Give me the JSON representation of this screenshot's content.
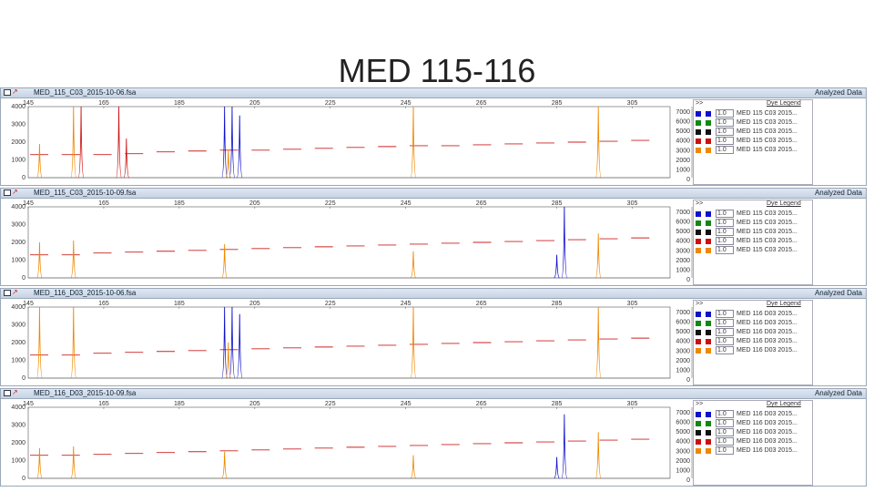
{
  "slide": {
    "title": "MED 115-116"
  },
  "legend_title": "Dye Legend",
  "legend_expand": ">>",
  "analyzed_label": "Analyzed Data",
  "colors": {
    "blue": "#1010cc",
    "green": "#118811",
    "black": "#111111",
    "red": "#cc1010",
    "orange": "#ee8800",
    "sizing": "#cc2222"
  },
  "x_ticks": [
    "145",
    "165",
    "185",
    "205",
    "225",
    "245",
    "265",
    "285",
    "305"
  ],
  "right_ticks": [
    "7000",
    "6000",
    "5000",
    "4000",
    "3000",
    "2000",
    "1000",
    "0"
  ],
  "panels": [
    {
      "file": "MED_115_C03_2015-10-06.fsa",
      "left_ticks": [
        "4000",
        "3000",
        "2000",
        "1000",
        "0"
      ],
      "legend": [
        {
          "value": "1.0",
          "name": "MED 115 C03 2015..."
        },
        {
          "value": "1.0",
          "name": "MED 115 C03 2015..."
        },
        {
          "value": "1.0",
          "name": "MED 115 C03 2015..."
        },
        {
          "value": "1.0",
          "name": "MED 115 C03 2015..."
        },
        {
          "value": "1.0",
          "name": "MED 115 C03 2015..."
        }
      ]
    },
    {
      "file": "MED_115_C03_2015-10-09.fsa",
      "left_ticks": [
        "4000",
        "3000",
        "2000",
        "1000",
        "0"
      ],
      "legend": [
        {
          "value": "1.0",
          "name": "MED 115 C03 2015..."
        },
        {
          "value": "1.0",
          "name": "MED 115 C03 2015..."
        },
        {
          "value": "1.0",
          "name": "MED 115 C03 2015..."
        },
        {
          "value": "1.0",
          "name": "MED 115 C03 2015..."
        },
        {
          "value": "1.0",
          "name": "MED 115 C03 2015..."
        }
      ]
    },
    {
      "file": "MED_116_D03_2015-10-06.fsa",
      "left_ticks": [
        "4000",
        "3000",
        "2000",
        "1000",
        "0"
      ],
      "legend": [
        {
          "value": "1.0",
          "name": "MED 116 D03 2015..."
        },
        {
          "value": "1.0",
          "name": "MED 116 D03 2015..."
        },
        {
          "value": "1.0",
          "name": "MED 116 D03 2015..."
        },
        {
          "value": "1.0",
          "name": "MED 116 D03 2015..."
        },
        {
          "value": "1.0",
          "name": "MED 116 D03 2015..."
        }
      ]
    },
    {
      "file": "MED_116_D03_2015-10-09.fsa",
      "left_ticks": [
        "4000",
        "3000",
        "2000",
        "1000",
        "0"
      ],
      "legend": [
        {
          "value": "1.0",
          "name": "MED 116 D03 2015..."
        },
        {
          "value": "1.0",
          "name": "MED 116 D03 2015..."
        },
        {
          "value": "1.0",
          "name": "MED 116 D03 2015..."
        },
        {
          "value": "1.0",
          "name": "MED 116 D03 2015..."
        },
        {
          "value": "1.0",
          "name": "MED 116 D03 2015..."
        }
      ]
    }
  ],
  "chart_data": [
    {
      "type": "line",
      "xlim": [
        145,
        315
      ],
      "ylim": [
        0,
        4000
      ],
      "peaks": [
        {
          "x": 148,
          "y": 1900,
          "color": "orange"
        },
        {
          "x": 157,
          "y": 4000,
          "color": "orange"
        },
        {
          "x": 159,
          "y": 4000,
          "color": "red"
        },
        {
          "x": 169,
          "y": 4000,
          "color": "red"
        },
        {
          "x": 171,
          "y": 2200,
          "color": "red"
        },
        {
          "x": 197,
          "y": 4000,
          "color": "blue"
        },
        {
          "x": 199,
          "y": 4000,
          "color": "blue"
        },
        {
          "x": 201,
          "y": 3500,
          "color": "blue"
        },
        {
          "x": 198,
          "y": 1600,
          "color": "orange"
        },
        {
          "x": 247,
          "y": 4000,
          "color": "orange"
        },
        {
          "x": 296,
          "y": 4000,
          "color": "orange"
        }
      ],
      "sizing_y": [
        1300,
        1300,
        1300,
        1350,
        1450,
        1500,
        1550,
        1550,
        1600,
        1650,
        1700,
        1750,
        1800,
        1800,
        1850,
        1900,
        1950,
        2000,
        2050,
        2100
      ]
    },
    {
      "type": "line",
      "xlim": [
        145,
        315
      ],
      "ylim": [
        0,
        4000
      ],
      "peaks": [
        {
          "x": 148,
          "y": 2000,
          "color": "orange"
        },
        {
          "x": 157,
          "y": 2100,
          "color": "orange"
        },
        {
          "x": 197,
          "y": 1900,
          "color": "orange"
        },
        {
          "x": 247,
          "y": 1500,
          "color": "orange"
        },
        {
          "x": 287,
          "y": 4000,
          "color": "blue"
        },
        {
          "x": 285,
          "y": 1300,
          "color": "blue"
        },
        {
          "x": 296,
          "y": 2500,
          "color": "orange"
        }
      ],
      "sizing_y": [
        1300,
        1300,
        1400,
        1450,
        1500,
        1550,
        1600,
        1650,
        1700,
        1750,
        1800,
        1850,
        1900,
        1950,
        2000,
        2050,
        2100,
        2150,
        2200,
        2250
      ]
    },
    {
      "type": "line",
      "xlim": [
        145,
        315
      ],
      "ylim": [
        0,
        4000
      ],
      "peaks": [
        {
          "x": 148,
          "y": 4000,
          "color": "orange"
        },
        {
          "x": 157,
          "y": 4000,
          "color": "orange"
        },
        {
          "x": 197,
          "y": 4000,
          "color": "blue"
        },
        {
          "x": 199,
          "y": 4000,
          "color": "blue"
        },
        {
          "x": 201,
          "y": 3600,
          "color": "blue"
        },
        {
          "x": 198,
          "y": 2000,
          "color": "orange"
        },
        {
          "x": 247,
          "y": 4000,
          "color": "orange"
        },
        {
          "x": 296,
          "y": 4000,
          "color": "orange"
        }
      ],
      "sizing_y": [
        1300,
        1300,
        1400,
        1450,
        1500,
        1550,
        1600,
        1650,
        1700,
        1750,
        1800,
        1850,
        1900,
        1950,
        2000,
        2050,
        2100,
        2150,
        2200,
        2250
      ]
    },
    {
      "type": "line",
      "xlim": [
        145,
        315
      ],
      "ylim": [
        0,
        4000
      ],
      "peaks": [
        {
          "x": 148,
          "y": 1700,
          "color": "orange"
        },
        {
          "x": 157,
          "y": 1800,
          "color": "orange"
        },
        {
          "x": 197,
          "y": 1500,
          "color": "orange"
        },
        {
          "x": 247,
          "y": 1300,
          "color": "orange"
        },
        {
          "x": 287,
          "y": 3600,
          "color": "blue"
        },
        {
          "x": 285,
          "y": 1200,
          "color": "blue"
        },
        {
          "x": 296,
          "y": 2600,
          "color": "orange"
        }
      ],
      "sizing_y": [
        1300,
        1300,
        1350,
        1400,
        1450,
        1500,
        1550,
        1600,
        1650,
        1700,
        1750,
        1800,
        1850,
        1900,
        1950,
        2000,
        2050,
        2100,
        2150,
        2200
      ]
    }
  ]
}
